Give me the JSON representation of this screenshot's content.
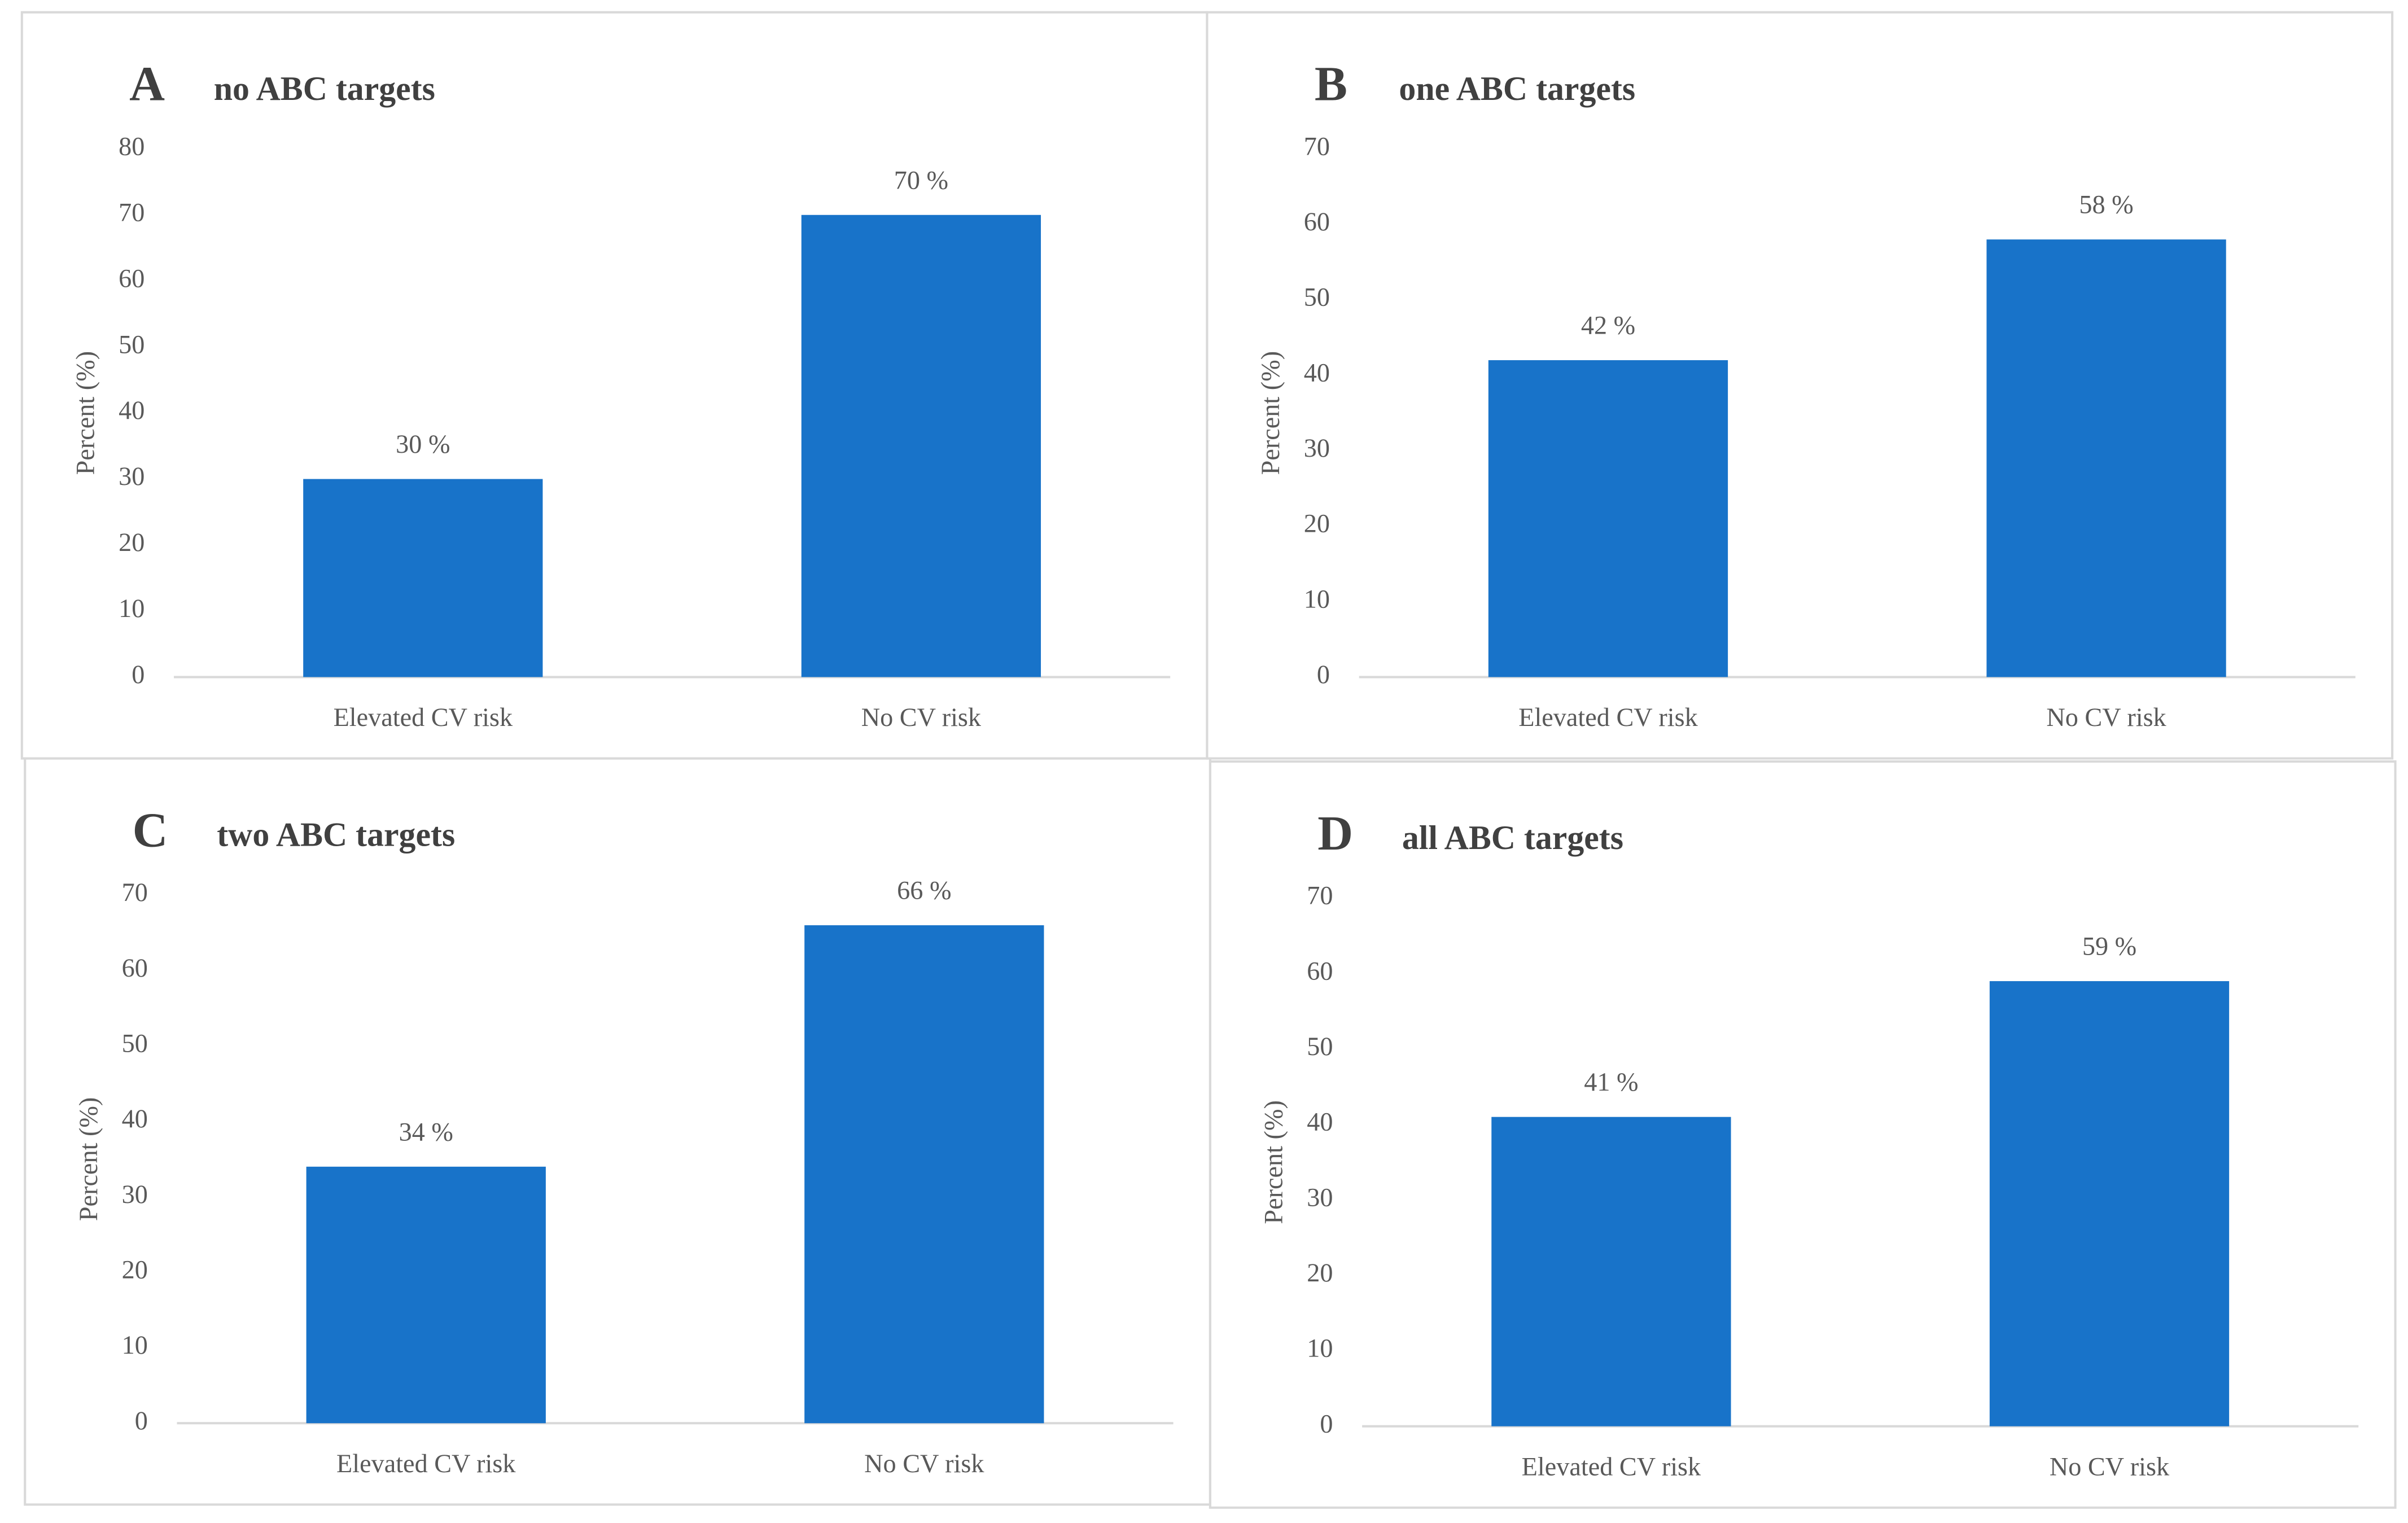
{
  "chart_data": [
    {
      "type": "bar",
      "panel": "A",
      "title": "no ABC targets",
      "y_label": "Percent (%)",
      "categories": [
        "Elevated CV risk",
        "No CV risk"
      ],
      "values": [
        30,
        70
      ],
      "value_labels": [
        "30 %",
        "70 %"
      ],
      "color": "#1873c9",
      "ylim": [
        0,
        80
      ],
      "yticks": [
        0,
        10,
        20,
        30,
        40,
        50,
        60,
        70,
        80
      ]
    },
    {
      "type": "bar",
      "panel": "B",
      "title": "one ABC targets",
      "y_label": "Percent (%)",
      "categories": [
        "Elevated CV risk",
        "No CV risk"
      ],
      "values": [
        42,
        58
      ],
      "value_labels": [
        "42 %",
        "58 %"
      ],
      "color": "#1873c9",
      "ylim": [
        0,
        70
      ],
      "yticks": [
        0,
        10,
        20,
        30,
        40,
        50,
        60,
        70
      ]
    },
    {
      "type": "bar",
      "panel": "C",
      "title": "two ABC targets",
      "y_label": "Percent (%)",
      "categories": [
        "Elevated CV risk",
        "No CV risk"
      ],
      "values": [
        34,
        66
      ],
      "value_labels": [
        "34 %",
        "66 %"
      ],
      "color": "#1873c9",
      "ylim": [
        0,
        70
      ],
      "yticks": [
        0,
        10,
        20,
        30,
        40,
        50,
        60,
        70
      ]
    },
    {
      "type": "bar",
      "panel": "D",
      "title": "all ABC targets",
      "y_label": "Percent (%)",
      "categories": [
        "Elevated CV risk",
        "No CV risk"
      ],
      "values": [
        41,
        59
      ],
      "value_labels": [
        "41 %",
        "59 %"
      ],
      "color": "#1873c9",
      "ylim": [
        0,
        70
      ],
      "yticks": [
        0,
        10,
        20,
        30,
        40,
        50,
        60,
        70
      ]
    }
  ]
}
